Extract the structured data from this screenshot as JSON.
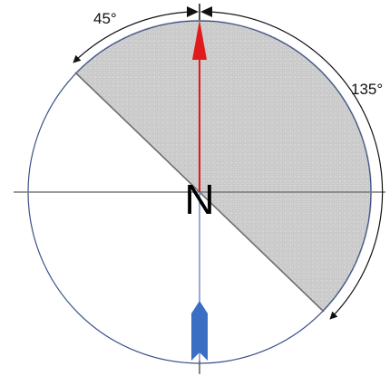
{
  "diagram": {
    "center_label": "N",
    "arc_left_label": "45°",
    "arc_right_label": "135°",
    "colors": {
      "circle_outline": "#3b4f8a",
      "shaded_sector_fill": "#d8d8d8",
      "shaded_sector_pattern": "#b6b6b6",
      "axis_line": "#7a7a7a",
      "heading_arrow": "#e11b1b",
      "bow_arrow": "#3a6fc4",
      "dimension_lines": "#111111"
    },
    "angles_deg": {
      "sector_start": -45,
      "sector_end": 135
    }
  }
}
